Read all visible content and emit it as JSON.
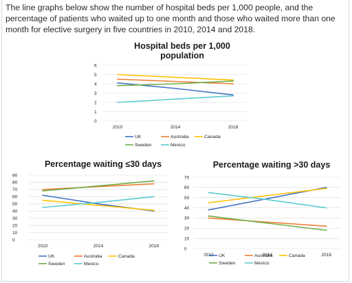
{
  "intro": "The line graphs below show the number of hospital beds per 1,000 people, and the percentage of patients who waited up to one month and those who waited more than one month for elective surgery in five countries in 2010, 2014 and 2018.",
  "colors": {
    "UK": "#4472c4",
    "Australia": "#ed7d31",
    "Canada": "#ffc000",
    "Sweden": "#70ad47",
    "Mexico": "#5bcbd1",
    "grid": "#d9d9d9"
  },
  "chart_data": [
    {
      "type": "line",
      "title": "Hospital beds per 1,000 population",
      "x": [
        "2010",
        "2014",
        "2018"
      ],
      "ylim": [
        0,
        6
      ],
      "yticks": [
        "0",
        "1",
        "2",
        "3",
        "4",
        "5",
        "6"
      ],
      "legend": "bottom",
      "series": [
        {
          "name": "UK",
          "values": [
            4.1,
            3.5,
            2.8
          ]
        },
        {
          "name": "Australia",
          "values": [
            4.5,
            4.25,
            4.0
          ]
        },
        {
          "name": "Canada",
          "values": [
            5.0,
            4.7,
            4.4
          ]
        },
        {
          "name": "Sweden",
          "values": [
            3.8,
            4.0,
            4.3
          ]
        },
        {
          "name": "Mexico",
          "values": [
            2.0,
            2.35,
            2.7
          ]
        }
      ]
    },
    {
      "type": "line",
      "title": "Percentage waiting ≤30 days",
      "x": [
        "2010",
        "2014",
        "2018"
      ],
      "ylim": [
        0,
        90
      ],
      "yticks": [
        "0",
        "10",
        "20",
        "30",
        "40",
        "50",
        "60",
        "70",
        "80",
        "90"
      ],
      "legend": "bottom",
      "series": [
        {
          "name": "UK",
          "values": [
            62,
            50,
            40
          ]
        },
        {
          "name": "Australia",
          "values": [
            70,
            74,
            78
          ]
        },
        {
          "name": "Canada",
          "values": [
            55,
            48,
            41
          ]
        },
        {
          "name": "Sweden",
          "values": [
            68,
            75,
            82
          ]
        },
        {
          "name": "Mexico",
          "values": [
            45,
            52,
            60
          ]
        }
      ]
    },
    {
      "type": "line",
      "title": "Percentage waiting >30 days",
      "x": [
        "2010",
        "2014",
        "2018"
      ],
      "ylim": [
        0,
        70
      ],
      "yticks": [
        "0",
        "10",
        "20",
        "30",
        "40",
        "50",
        "60",
        "70"
      ],
      "legend": "bottom",
      "series": [
        {
          "name": "UK",
          "values": [
            38,
            49,
            60
          ]
        },
        {
          "name": "Australia",
          "values": [
            30,
            26,
            22
          ]
        },
        {
          "name": "Canada",
          "values": [
            45,
            52,
            59
          ]
        },
        {
          "name": "Sweden",
          "values": [
            32,
            25,
            18
          ]
        },
        {
          "name": "Mexico",
          "values": [
            55,
            48,
            40
          ]
        }
      ]
    }
  ]
}
